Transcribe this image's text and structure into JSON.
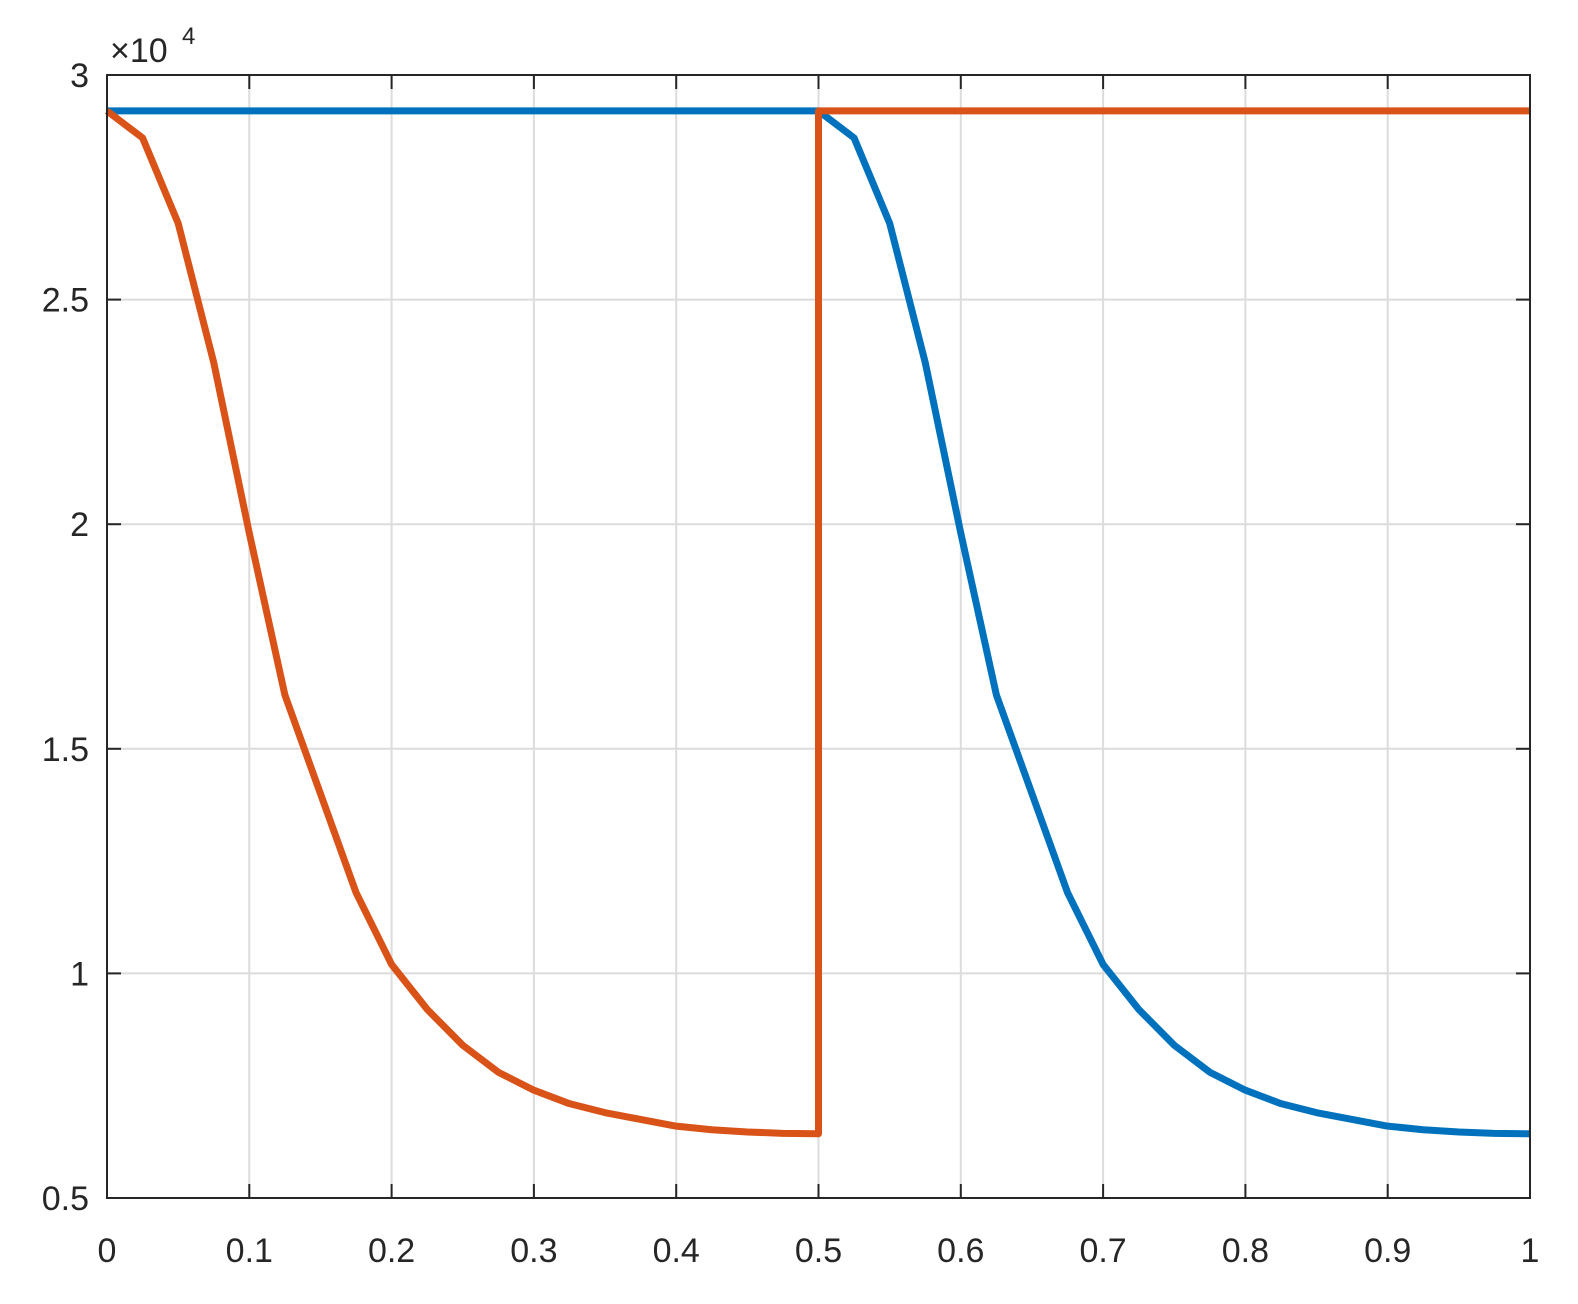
{
  "chart_data": {
    "type": "line",
    "y_multiplier": "×10",
    "y_multiplier_exponent": "4",
    "xlim": [
      0,
      1
    ],
    "xticks": [
      0,
      0.1,
      0.2,
      0.3,
      0.4,
      0.5,
      0.6,
      0.7,
      0.8,
      0.9,
      1
    ],
    "ylim": [
      0.5,
      3
    ],
    "yticks": [
      0.5,
      1,
      1.5,
      2,
      2.5,
      3
    ],
    "grid": true,
    "series": [
      {
        "color": "#0072BD",
        "x": [
          0,
          0.5,
          0.525,
          0.55,
          0.575,
          0.6,
          0.625,
          0.65,
          0.675,
          0.7,
          0.725,
          0.75,
          0.775,
          0.8,
          0.825,
          0.85,
          0.875,
          0.9,
          0.925,
          0.95,
          0.975,
          1
        ],
        "values": [
          2.92,
          2.92,
          2.86,
          2.67,
          2.36,
          1.98,
          1.62,
          1.4,
          1.18,
          1.02,
          0.92,
          0.84,
          0.78,
          0.74,
          0.71,
          0.69,
          0.675,
          0.66,
          0.652,
          0.647,
          0.644,
          0.643
        ]
      },
      {
        "color": "#D95319",
        "x": [
          0,
          0.025,
          0.05,
          0.075,
          0.1,
          0.125,
          0.15,
          0.175,
          0.2,
          0.225,
          0.25,
          0.275,
          0.3,
          0.325,
          0.35,
          0.375,
          0.4,
          0.425,
          0.45,
          0.475,
          0.5,
          0.5,
          1
        ],
        "values": [
          2.92,
          2.86,
          2.67,
          2.36,
          1.98,
          1.62,
          1.4,
          1.18,
          1.02,
          0.92,
          0.84,
          0.78,
          0.74,
          0.71,
          0.69,
          0.675,
          0.66,
          0.652,
          0.647,
          0.644,
          0.643,
          2.92,
          2.92
        ]
      }
    ]
  }
}
